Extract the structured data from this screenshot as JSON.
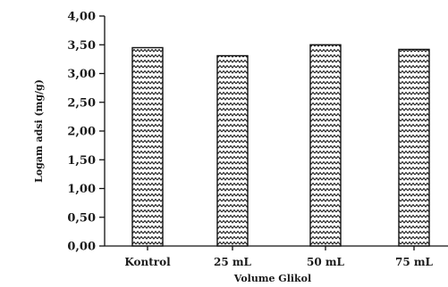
{
  "chart_data": {
    "type": "bar",
    "categories": [
      "Kontrol",
      "25 mL",
      "50 mL",
      "75 mL"
    ],
    "values": [
      3.45,
      3.31,
      3.5,
      3.42
    ],
    "xlabel": "Volume Glikol",
    "ylabel": "Logam adsi (mg/g)",
    "ylim": [
      0,
      4
    ],
    "yticks": [
      "0,00",
      "0,50",
      "1,00",
      "1,50",
      "2,00",
      "2,50",
      "3,00",
      "3,50",
      "4,00"
    ],
    "bar_fill": "zigzag-hatch",
    "colors": {
      "stroke": "#111111",
      "background": "#ffffff"
    },
    "grid": false,
    "legend": "none"
  }
}
